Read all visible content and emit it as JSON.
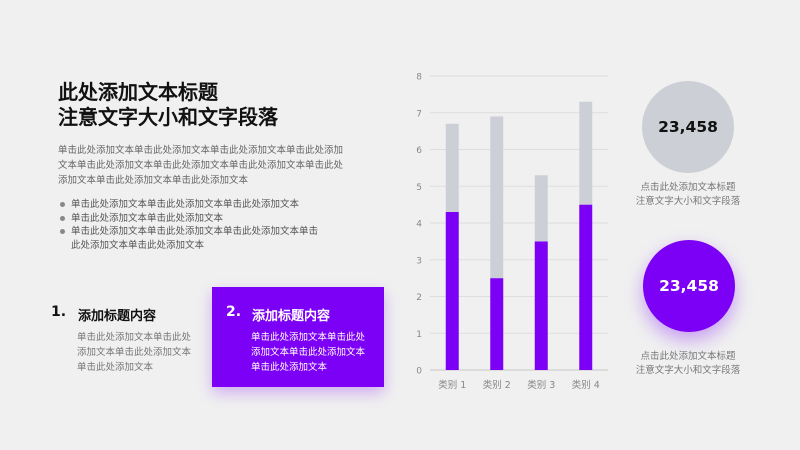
{
  "title": [
    "此处添加文本标题",
    "注意文字大小和文字段落"
  ],
  "paragraph": [
    "单击此处添加文本单击此处添加文本单击此处添加文本单击此处添加",
    "文本单击此处添加文本单击此处添加文本单击此处添加文本单击此处",
    "添加文本单击此处添加文本单击此处添加文本"
  ],
  "bullets": [
    [
      "单击此处添加文本单击此处添加文本单击此处添加文本"
    ],
    [
      "单击此处添加文本单击此处添加文本"
    ],
    [
      "单击此处添加文本单击此处添加文本单击此处添加文本单击",
      "此处添加文本单击此处添加文本"
    ]
  ],
  "cards": [
    {
      "number": "1.",
      "title": "添加标题内容",
      "body": [
        "单击此处添加文本单击此处",
        "添加文本单击此处添加文本",
        "单击此处添加文本"
      ]
    },
    {
      "number": "2.",
      "title": "添加标题内容",
      "body": [
        "单击此处添加文本单击此处",
        "添加文本单击此处添加文本",
        "单击此处添加文本"
      ]
    }
  ],
  "stats": [
    {
      "value": "23,458",
      "caption": [
        "点击此处添加文本标题",
        "注意文字大小和文字段落"
      ]
    },
    {
      "value": "23,458",
      "caption": [
        "点击此处添加文本标题",
        "注意文字大小和文字段落"
      ]
    }
  ],
  "colors": {
    "accent": "#7c00f5",
    "secondary": "#ccd0d6",
    "background": "#f0f0f0"
  },
  "chart_data": {
    "type": "bar",
    "stacked": true,
    "categories": [
      "类别 1",
      "类别 2",
      "类别 3",
      "类别 4"
    ],
    "series": [
      {
        "values": [
          4.3,
          2.5,
          3.5,
          4.5
        ],
        "color": "#7c00f5"
      },
      {
        "values": [
          2.4,
          4.4,
          1.8,
          2.8
        ],
        "color": "#ccd0d6"
      }
    ],
    "ylim": [
      0,
      8
    ],
    "yticks": [
      "0",
      "1",
      "2",
      "3",
      "4",
      "5",
      "6",
      "7",
      "8"
    ],
    "grid": true
  }
}
